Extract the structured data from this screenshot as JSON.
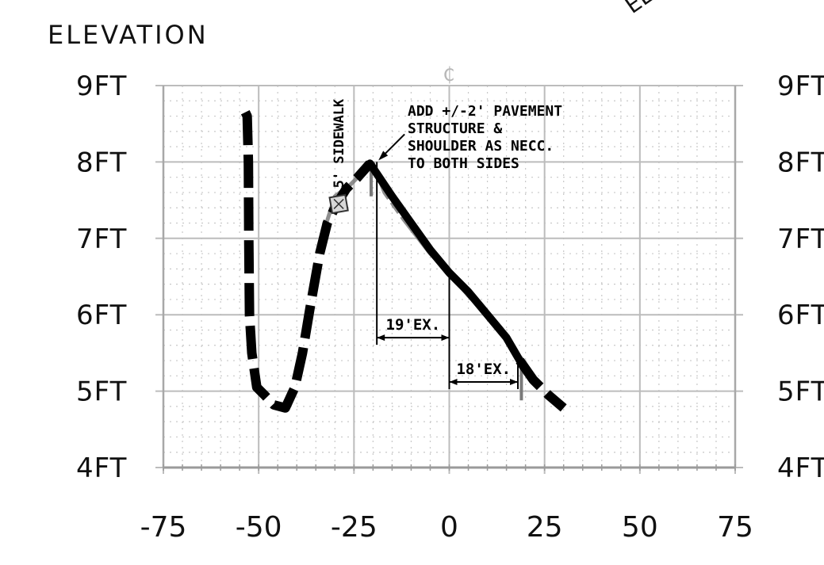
{
  "elevation_label": "ELEVATION",
  "corner_label": "EL",
  "centerline_symbol": "₵",
  "sidewalk_label": "5' SIDEWALK",
  "note_lines": [
    "ADD +/-2' PAVEMENT",
    "STRUCTURE &",
    "SHOULDER AS NECC.",
    "TO BOTH SIDES"
  ],
  "dimensions": {
    "left": "19'EX.",
    "right": "18'EX."
  },
  "colors": {
    "profile": "#000000",
    "existing": "#7a7a7a",
    "grid_major": "#bcbcbc",
    "grid_minor": "#c8c8c8"
  },
  "chart_data": {
    "type": "line",
    "xlabel": "",
    "ylabel": "ELEVATION",
    "xlim": [
      -75,
      75
    ],
    "ylim": [
      4,
      9
    ],
    "x_ticks": [
      "-75",
      "-50",
      "-25",
      "0",
      "25",
      "50",
      "75"
    ],
    "y_ticks_left": [
      "9FT",
      "8FT",
      "7FT",
      "6FT",
      "5FT",
      "4FT"
    ],
    "y_ticks_right": [
      "9FT",
      "8FT",
      "7FT",
      "6FT",
      "5FT",
      "4FT"
    ],
    "grid": true,
    "series": [
      {
        "style": "dashed",
        "x": [
          -53.5,
          -53,
          -52.7,
          -52.6,
          -52.4,
          -51.8,
          -50.5,
          -48.5,
          -46,
          -43,
          -40.5,
          -38.5,
          -36.5,
          -34,
          -32,
          -29.5,
          -27,
          -24,
          -20.8
        ],
        "y": [
          8.65,
          8.6,
          8.0,
          7.0,
          6.0,
          5.5,
          5.05,
          4.95,
          4.82,
          4.78,
          5.05,
          5.5,
          6.1,
          6.8,
          7.2,
          7.45,
          7.65,
          7.8,
          7.98
        ]
      },
      {
        "style": "solid",
        "x": [
          -20.8,
          -15,
          -10,
          -5,
          0,
          5,
          10,
          15,
          18.5
        ],
        "y": [
          7.98,
          7.55,
          7.2,
          6.85,
          6.55,
          6.3,
          6.0,
          5.7,
          5.4
        ]
      },
      {
        "style": "dashed",
        "x": [
          18.5,
          22,
          26,
          30
        ],
        "y": [
          5.4,
          5.15,
          4.95,
          4.78
        ]
      },
      {
        "style": "existing",
        "x": [
          -33.5,
          -30,
          -26,
          -22,
          -20,
          -17,
          -12,
          -5,
          0,
          5,
          10,
          15,
          18.5
        ],
        "y": [
          7.0,
          7.55,
          7.7,
          7.9,
          7.98,
          7.6,
          7.25,
          6.8,
          6.55,
          6.25,
          6.0,
          5.7,
          5.45
        ]
      }
    ],
    "annotations": [
      {
        "kind": "dimension",
        "label": "19'EX.",
        "x_from": -19,
        "x_to": 0,
        "y": 5.7
      },
      {
        "kind": "dimension",
        "label": "18'EX.",
        "x_from": 0,
        "x_to": 18,
        "y": 5.12
      },
      {
        "kind": "marker",
        "label": "5' SIDEWALK",
        "x": -29,
        "y": 7.45
      },
      {
        "kind": "note",
        "label": "ADD +/-2' PAVEMENT STRUCTURE & SHOULDER AS NECC. TO BOTH SIDES",
        "x": -19,
        "y": 8.0
      },
      {
        "kind": "centerline",
        "label": "₵",
        "x": 0
      }
    ]
  }
}
